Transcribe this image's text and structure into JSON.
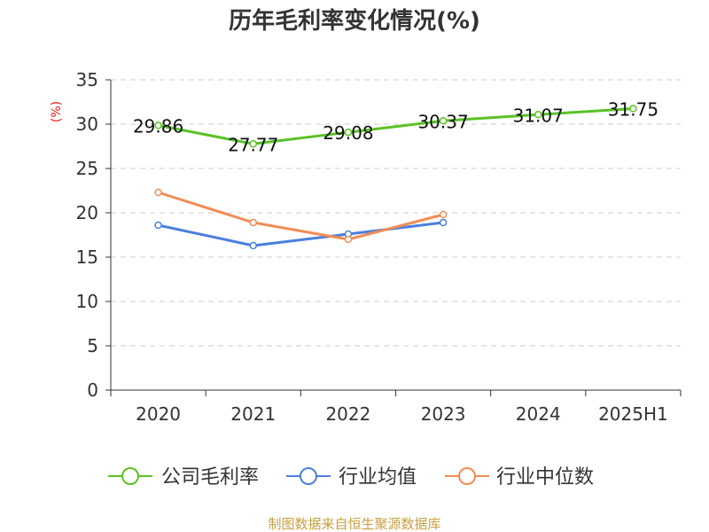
{
  "chart_data": {
    "type": "line",
    "title": "历年毛利率变化情况(%)",
    "ylabel": "(%)",
    "categories": [
      "2020",
      "2021",
      "2022",
      "2023",
      "2024",
      "2025H1"
    ],
    "ylim": [
      0,
      35
    ],
    "yticks": [
      0,
      5,
      10,
      15,
      20,
      25,
      30,
      35
    ],
    "grid": true,
    "legend_position": "bottom",
    "series": [
      {
        "name": "公司毛利率",
        "color": "#5ac225",
        "values": [
          29.86,
          27.77,
          29.08,
          30.37,
          31.07,
          31.75
        ],
        "labels": [
          "29.86",
          "27.77",
          "29.08",
          "30.37",
          "31.07",
          "31.75"
        ]
      },
      {
        "name": "行业均值",
        "color": "#4a7fdc",
        "values": [
          18.6,
          16.3,
          17.6,
          18.9,
          null,
          null
        ],
        "labels": []
      },
      {
        "name": "行业中位数",
        "color": "#f28c55",
        "values": [
          22.3,
          18.9,
          17.0,
          19.8,
          null,
          null
        ],
        "labels": []
      }
    ]
  },
  "source": "制图数据来自恒生聚源数据库"
}
